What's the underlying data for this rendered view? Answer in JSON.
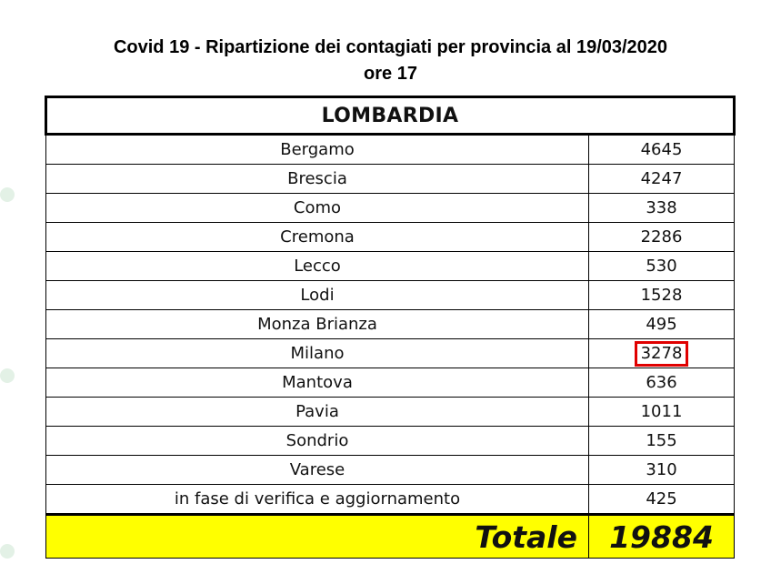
{
  "title": {
    "line1": "Covid 19 - Ripartizione dei contagiati per provincia al 19/03/2020",
    "line2": "ore 17"
  },
  "table": {
    "region": "LOMBARDIA",
    "rows": [
      {
        "province": "Bergamo",
        "cases": "4645"
      },
      {
        "province": "Brescia",
        "cases": "4247"
      },
      {
        "province": "Como",
        "cases": "338"
      },
      {
        "province": "Cremona",
        "cases": "2286"
      },
      {
        "province": "Lecco",
        "cases": "530"
      },
      {
        "province": "Lodi",
        "cases": "1528"
      },
      {
        "province": "Monza Brianza",
        "cases": "495"
      },
      {
        "province": "Milano",
        "cases": "3278"
      },
      {
        "province": "Mantova",
        "cases": "636"
      },
      {
        "province": "Pavia",
        "cases": "1011"
      },
      {
        "province": "Sondrio",
        "cases": "155"
      },
      {
        "province": "Varese",
        "cases": "310"
      },
      {
        "province": "in fase di verifica e aggiornamento",
        "cases": "425"
      }
    ],
    "total_label": "Totale",
    "total_value": "19884"
  },
  "colors": {
    "highlight_border": "#e00000",
    "total_background": "#ffff00"
  }
}
